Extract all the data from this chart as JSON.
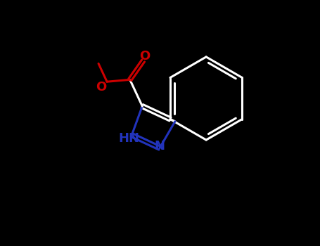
{
  "bg_color": "#000000",
  "bond_color": "#ffffff",
  "N_color": "#2233bb",
  "O_color": "#cc0000",
  "lw": 2.2,
  "lw_thick": 2.8,
  "figsize": [
    4.55,
    3.5
  ],
  "dpi": 100,
  "xlim": [
    0,
    10
  ],
  "ylim": [
    0,
    8
  ]
}
